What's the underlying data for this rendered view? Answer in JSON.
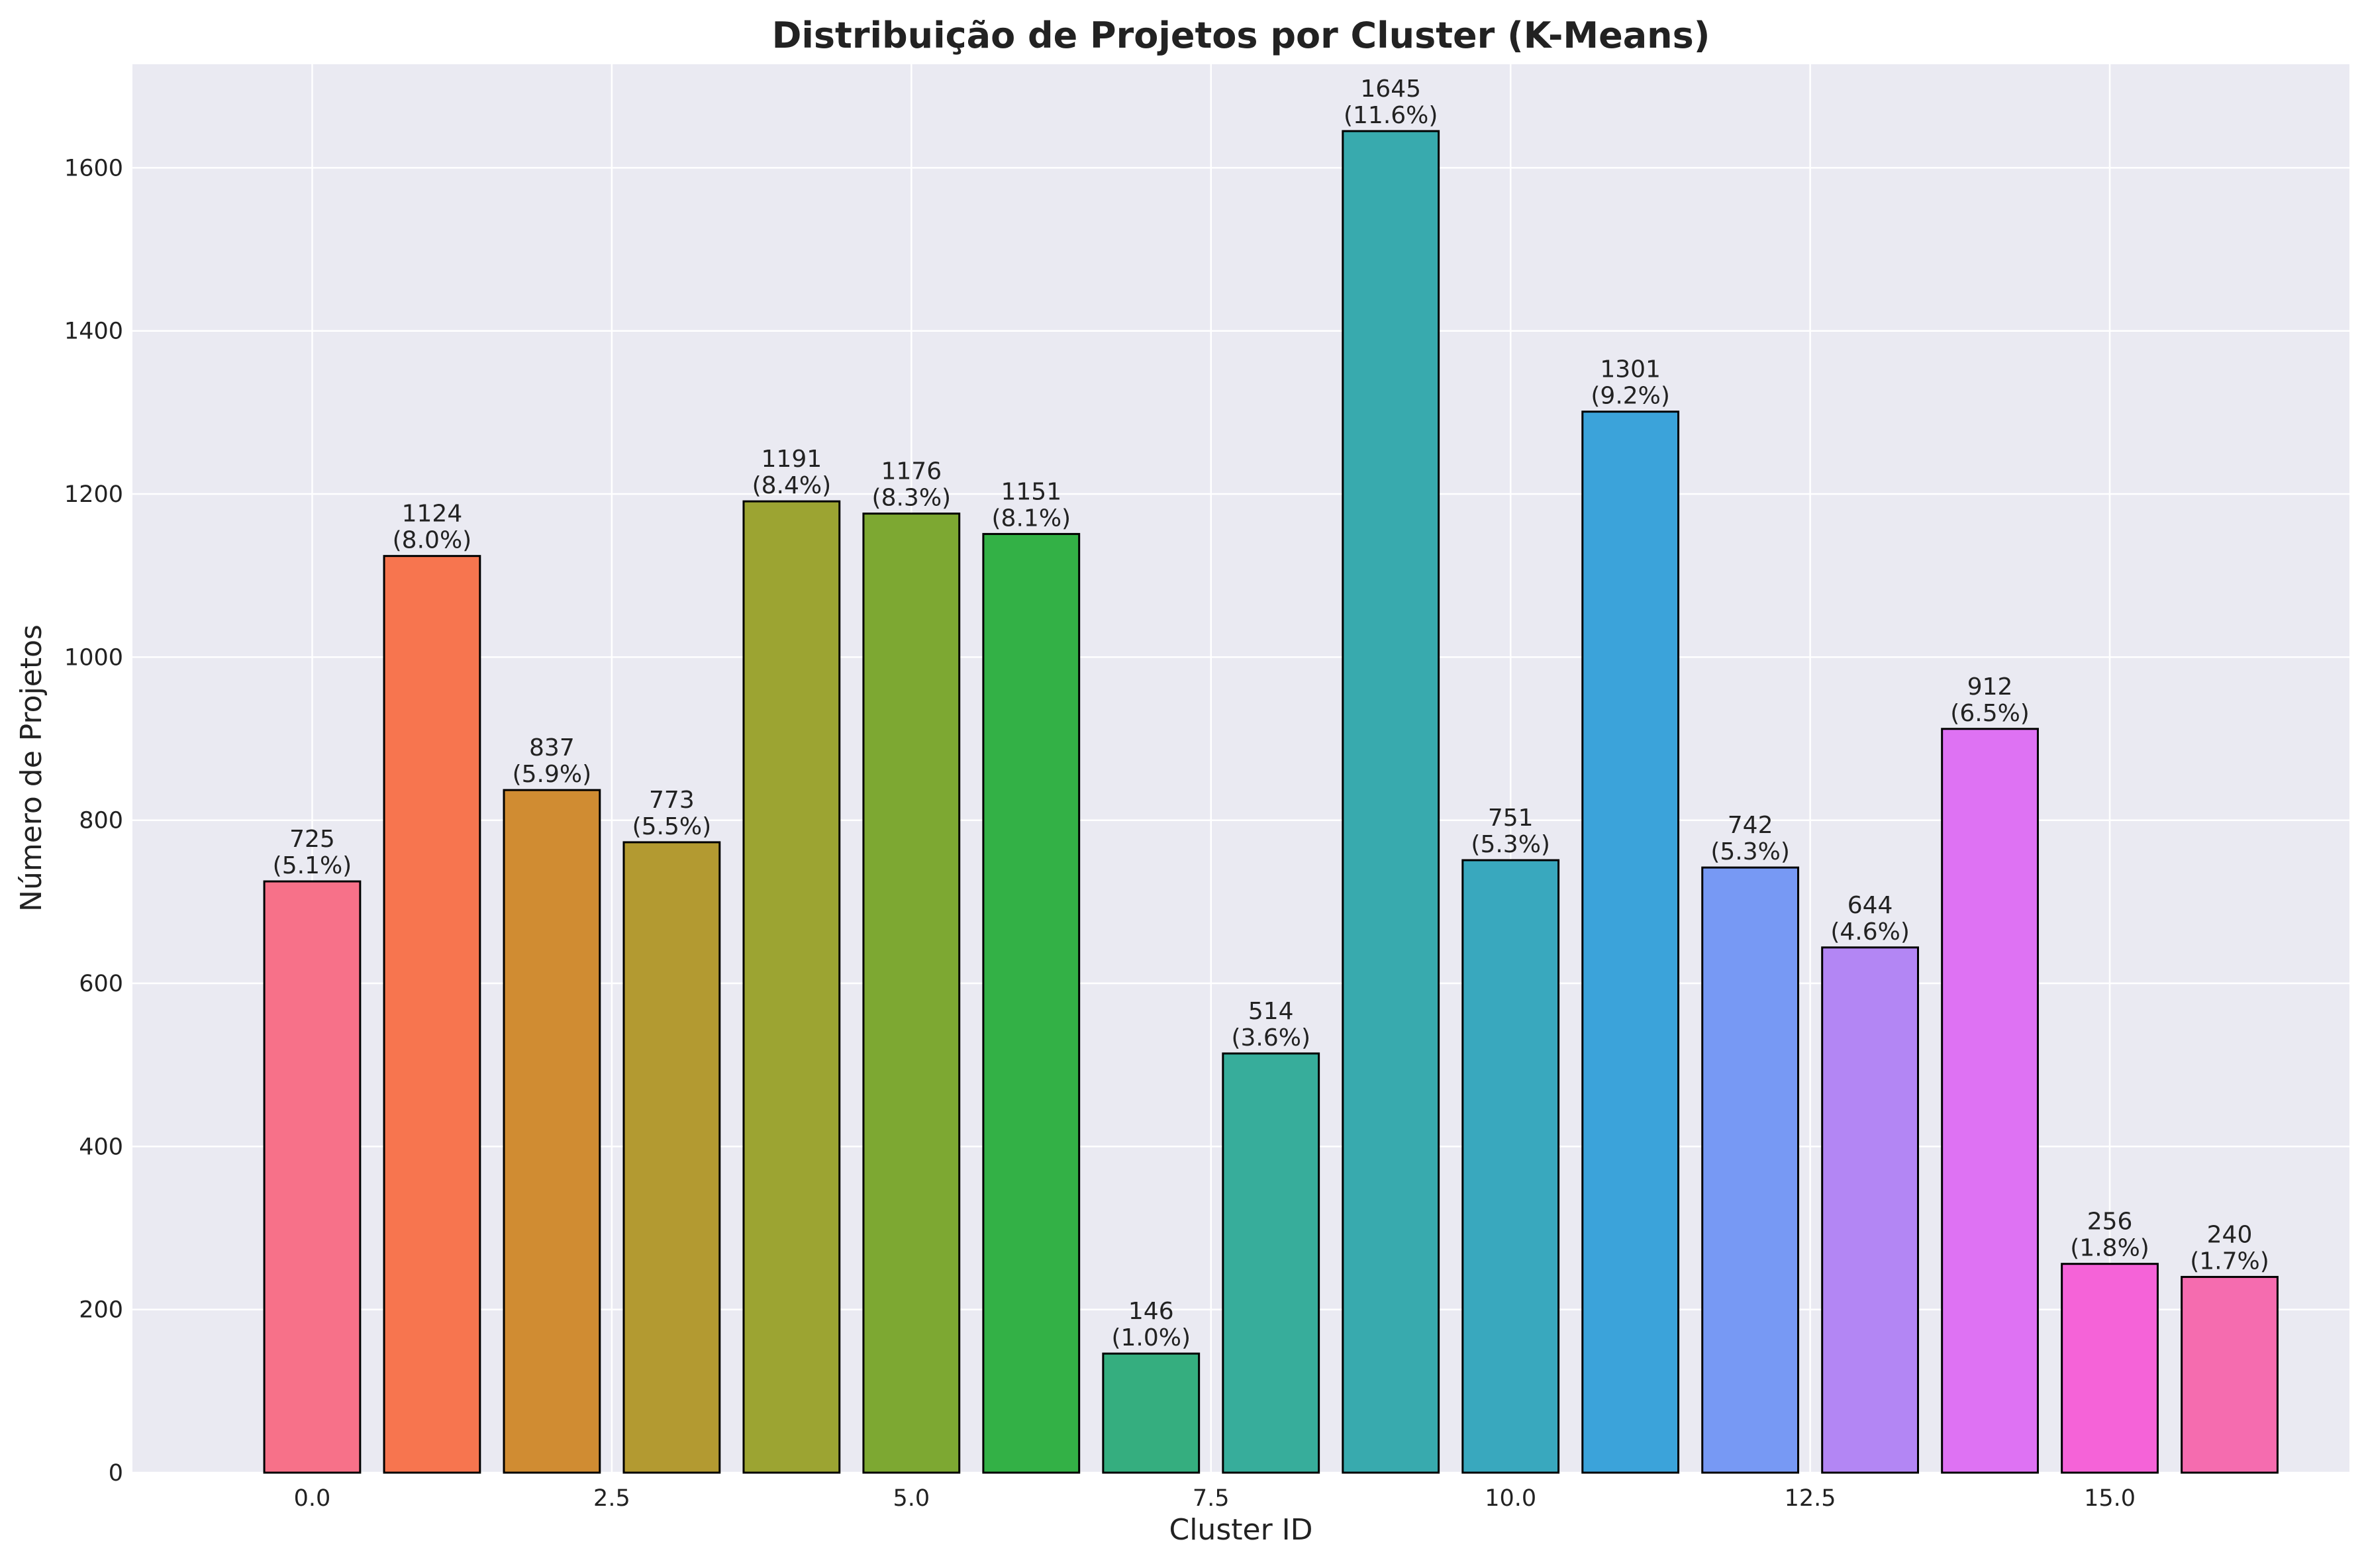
{
  "chart_data": {
    "type": "bar",
    "title": "Distribuição de Projetos por Cluster (K-Means)",
    "xlabel": "Cluster ID",
    "ylabel": "Número de Projetos",
    "xlim": [
      -1.5,
      17.0
    ],
    "ylim": [
      0,
      1727
    ],
    "xticks": [
      "0.0",
      "2.5",
      "5.0",
      "7.5",
      "10.0",
      "12.5",
      "15.0"
    ],
    "yticks": [
      "0",
      "200",
      "400",
      "600",
      "800",
      "1000",
      "1200",
      "1400",
      "1600"
    ],
    "grid": true,
    "clusters": [
      0,
      1,
      2,
      3,
      4,
      5,
      6,
      7,
      8,
      9,
      10,
      11,
      12,
      13,
      14,
      15,
      16
    ],
    "values": [
      725,
      1124,
      837,
      773,
      1191,
      1176,
      1151,
      146,
      514,
      1645,
      751,
      1301,
      742,
      644,
      912,
      256,
      240
    ],
    "value_labels": [
      "725",
      "1124",
      "837",
      "773",
      "1191",
      "1176",
      "1151",
      "146",
      "514",
      "1645",
      "751",
      "1301",
      "742",
      "644",
      "912",
      "256",
      "240"
    ],
    "percent_labels": [
      "(5.1%)",
      "(8.0%)",
      "(5.9%)",
      "(5.5%)",
      "(8.4%)",
      "(8.3%)",
      "(8.1%)",
      "(1.0%)",
      "(3.6%)",
      "(11.6%)",
      "(5.3%)",
      "(9.2%)",
      "(5.3%)",
      "(4.6%)",
      "(6.5%)",
      "(1.8%)",
      "(1.7%)"
    ],
    "colors": [
      "#f77189",
      "#f7754f",
      "#d08c32",
      "#b39a31",
      "#9ca432",
      "#7da832",
      "#33b146",
      "#35ae7f",
      "#37ad9b",
      "#38aaae",
      "#39a8be",
      "#3ba3da",
      "#7799f4",
      "#b386f4",
      "#de72f3",
      "#f563d8",
      "#f56caf"
    ],
    "background": "#eaeaf2",
    "edge_color": "#000000"
  }
}
